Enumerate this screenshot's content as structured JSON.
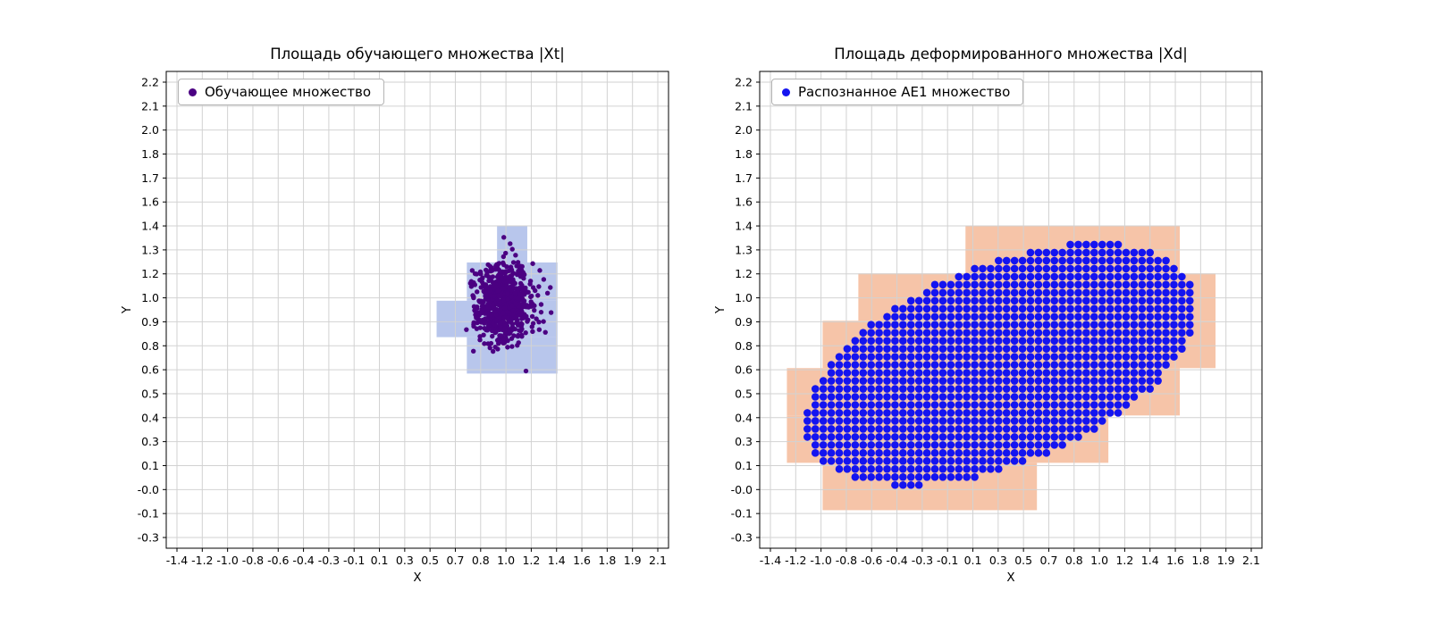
{
  "figure": {
    "background": "#ffffff",
    "grid_color": "#d2d2d2",
    "frame_color": "#000000"
  },
  "chart_data": [
    {
      "type": "scatter",
      "title": "Площадь обучающего множества |Xt|",
      "xlabel": "X",
      "ylabel": "Y",
      "legend": {
        "label": "Обучающее множество",
        "marker_color": "#4B0082",
        "position": "upper left"
      },
      "x_axis": {
        "first": -1.4,
        "last": 2.1,
        "tick_labels": [
          "-1.4",
          "-1.2",
          "-1.0",
          "-0.8",
          "-0.6",
          "-0.4",
          "-0.3",
          "-0.1",
          "0.1",
          "0.3",
          "0.5",
          "0.7",
          "0.8",
          "1.0",
          "1.2",
          "1.4",
          "1.6",
          "1.8",
          "1.9",
          "2.1"
        ]
      },
      "y_axis": {
        "first": -0.3,
        "last": 2.2,
        "tick_labels": [
          "-0.3",
          "-0.1",
          "-0.0",
          "0.1",
          "0.3",
          "0.4",
          "0.5",
          "0.6",
          "0.8",
          "0.9",
          "1.0",
          "1.2",
          "1.3",
          "1.4",
          "1.6",
          "1.7",
          "1.8",
          "2.0",
          "2.1",
          "2.2"
        ]
      },
      "region": {
        "color": "#b8c6ec",
        "rows": [
          {
            "y0": 0.6,
            "y1": 0.8,
            "x0": 0.71,
            "x1": 1.37
          },
          {
            "y0": 0.8,
            "y1": 1.0,
            "x0": 0.49,
            "x1": 1.37
          },
          {
            "y0": 1.0,
            "y1": 1.21,
            "x0": 0.71,
            "x1": 1.37
          },
          {
            "y0": 1.21,
            "y1": 1.41,
            "x0": 0.93,
            "x1": 1.15
          }
        ]
      },
      "scatter": {
        "kind": "gaussian_cluster",
        "center": [
          0.98,
          0.99
        ],
        "sigma": [
          0.105,
          0.112
        ],
        "n": 700,
        "color": "#4B0082",
        "radius_px": 2.7,
        "seed": 7
      }
    },
    {
      "type": "scatter",
      "title": "Площадь деформированного множества |Xd|",
      "xlabel": "X",
      "ylabel": "Y",
      "legend": {
        "label": "Распознанное AE1 множество",
        "marker_color": "#1414F0",
        "position": "upper left"
      },
      "x_axis": {
        "first": -1.4,
        "last": 2.1,
        "tick_labels": [
          "-1.4",
          "-1.2",
          "-1.0",
          "-0.8",
          "-0.6",
          "-0.4",
          "-0.3",
          "-0.1",
          "0.1",
          "0.3",
          "0.5",
          "0.7",
          "0.8",
          "1.0",
          "1.2",
          "1.4",
          "1.6",
          "1.8",
          "1.9",
          "2.1"
        ]
      },
      "y_axis": {
        "first": -0.3,
        "last": 2.2,
        "tick_labels": [
          "-0.3",
          "-0.1",
          "-0.0",
          "0.1",
          "0.3",
          "0.4",
          "0.5",
          "0.6",
          "0.8",
          "0.9",
          "1.0",
          "1.2",
          "1.3",
          "1.4",
          "1.6",
          "1.7",
          "1.8",
          "2.0",
          "2.1",
          "2.2"
        ]
      },
      "region": {
        "color": "#f6c4a8",
        "rows": [
          {
            "y0": -0.15,
            "y1": 0.11,
            "x0": -1.02,
            "x1": 0.54
          },
          {
            "y0": 0.11,
            "y1": 0.37,
            "x0": -1.28,
            "x1": 1.06
          },
          {
            "y0": 0.37,
            "y1": 0.63,
            "x0": -1.28,
            "x1": 1.58
          },
          {
            "y0": 0.63,
            "y1": 0.89,
            "x0": -1.02,
            "x1": 1.84
          },
          {
            "y0": 0.89,
            "y1": 1.15,
            "x0": -0.76,
            "x1": 1.84
          },
          {
            "y0": 1.15,
            "y1": 1.41,
            "x0": 0.02,
            "x1": 1.58
          }
        ]
      },
      "scatter": {
        "kind": "ellipse_grid",
        "center": [
          0.28,
          0.65
        ],
        "semi_axes": [
          1.47,
          0.565
        ],
        "angle_deg": 15,
        "grid_step": [
          0.058,
          0.044
        ],
        "color": "#1414F0",
        "radius_px": 4.3
      }
    }
  ]
}
